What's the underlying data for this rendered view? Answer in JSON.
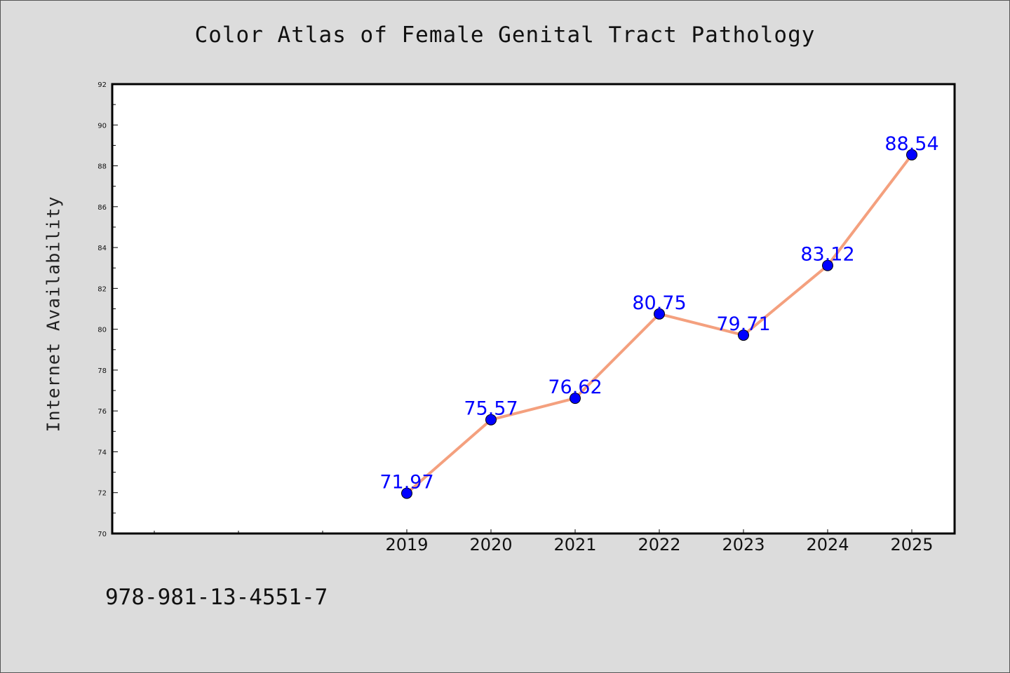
{
  "title": "Color Atlas of Female Genital Tract Pathology",
  "footer_text": "978-981-13-4551-7",
  "colors": {
    "background": "#dcdcdc",
    "plot_background": "#ffffff",
    "line": "#f4a07e",
    "marker": "#0000ff",
    "data_label": "#0000ff"
  },
  "chart_data": {
    "type": "line",
    "title": "Color Atlas of Female Genital Tract Pathology",
    "xlabel": "",
    "ylabel": "Internet Availability",
    "categories": [
      "2019",
      "2020",
      "2021",
      "2022",
      "2023",
      "2024",
      "2025"
    ],
    "values": [
      71.97,
      75.57,
      76.62,
      80.75,
      79.71,
      83.12,
      88.54
    ],
    "data_labels": [
      "71.97",
      "75.57",
      "76.62",
      "80.75",
      "79.71",
      "83.12",
      "88.54"
    ],
    "ylim": [
      70,
      92
    ],
    "y_ticks": [
      "70",
      "72",
      "74",
      "76",
      "78",
      "80",
      "82",
      "84",
      "86",
      "88",
      "90",
      "92"
    ],
    "grid": false,
    "legend": "none"
  }
}
